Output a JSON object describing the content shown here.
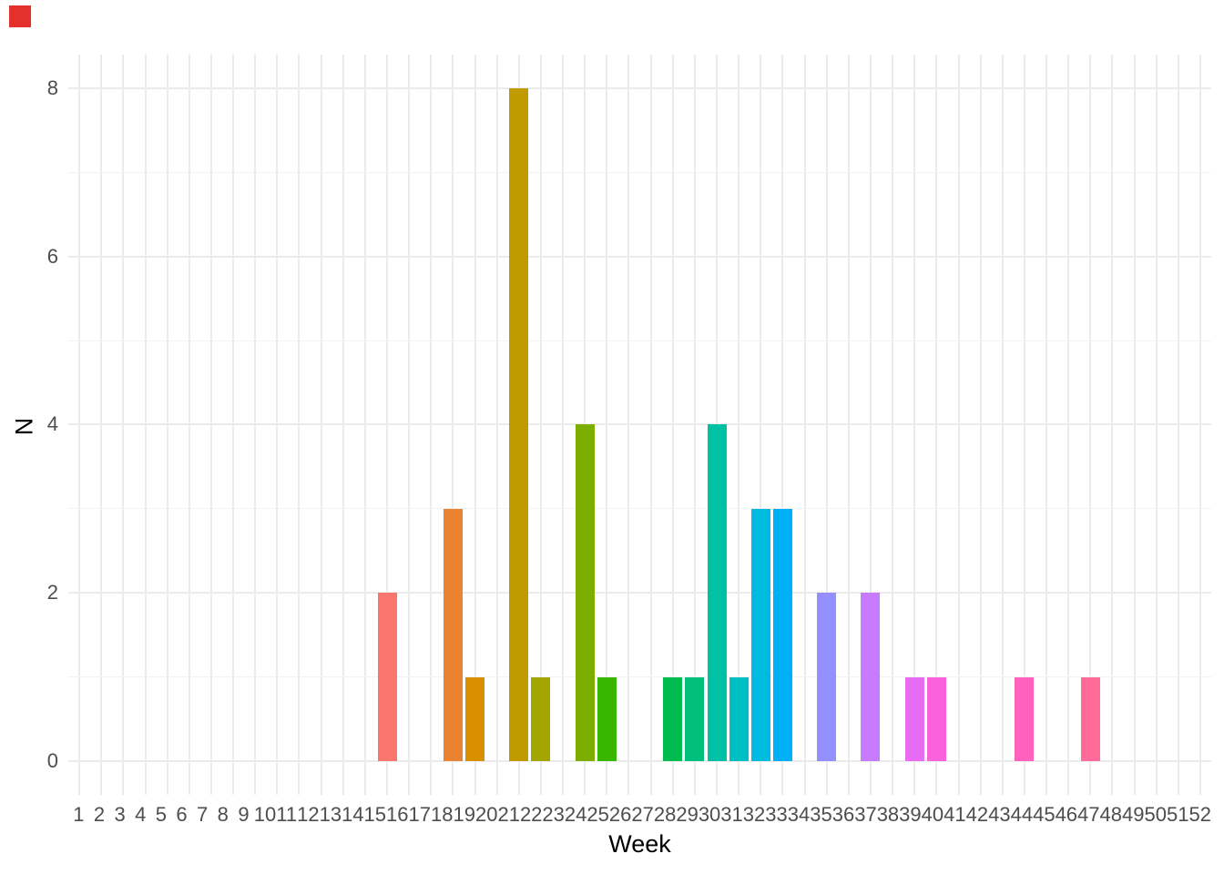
{
  "corner_marker": {
    "color": "#E4312B"
  },
  "chart_data": {
    "type": "bar",
    "title": "",
    "xlabel": "Week",
    "ylabel": "N",
    "ylim": [
      0,
      8
    ],
    "y_major_ticks": [
      0,
      2,
      4,
      6,
      8
    ],
    "y_minor_gridlines": [
      1,
      3,
      5,
      7
    ],
    "grid": "on",
    "legend_position": "none",
    "panel_background": "#FFFFFF",
    "major_grid_color": "#EBEBEB",
    "minor_grid_color": "#F2F2F2",
    "tick_label_color": "#4D4D4D",
    "axis_title_color": "#000000",
    "categories": [
      "1",
      "2",
      "3",
      "4",
      "5",
      "6",
      "7",
      "8",
      "9",
      "10",
      "11",
      "12",
      "13",
      "14",
      "15",
      "16",
      "17",
      "18",
      "19",
      "20",
      "21",
      "22",
      "23",
      "24",
      "25",
      "26",
      "27",
      "28",
      "29",
      "30",
      "31",
      "32",
      "33",
      "34",
      "35",
      "36",
      "37",
      "38",
      "39",
      "40",
      "41",
      "42",
      "43",
      "44",
      "45",
      "46",
      "47",
      "48",
      "49",
      "50",
      "51",
      "52"
    ],
    "values": [
      0,
      0,
      0,
      0,
      0,
      0,
      0,
      0,
      0,
      0,
      0,
      0,
      0,
      0,
      2,
      0,
      0,
      3,
      1,
      0,
      8,
      1,
      0,
      4,
      1,
      0,
      0,
      1,
      1,
      4,
      1,
      3,
      3,
      0,
      2,
      0,
      2,
      0,
      1,
      1,
      0,
      0,
      0,
      1,
      0,
      0,
      1,
      0,
      0,
      0,
      0,
      0
    ],
    "nonzero_bars": [
      {
        "week": 15,
        "n": 2,
        "color": "#F8766D"
      },
      {
        "week": 18,
        "n": 3,
        "color": "#EA8331"
      },
      {
        "week": 19,
        "n": 1,
        "color": "#D89000"
      },
      {
        "week": 21,
        "n": 8,
        "color": "#C09B00"
      },
      {
        "week": 22,
        "n": 1,
        "color": "#A3A500"
      },
      {
        "week": 24,
        "n": 4,
        "color": "#7CAE00"
      },
      {
        "week": 25,
        "n": 1,
        "color": "#39B600"
      },
      {
        "week": 28,
        "n": 1,
        "color": "#00BB4E"
      },
      {
        "week": 29,
        "n": 1,
        "color": "#00BF7D"
      },
      {
        "week": 30,
        "n": 4,
        "color": "#00C1A3"
      },
      {
        "week": 31,
        "n": 1,
        "color": "#00BFC4"
      },
      {
        "week": 32,
        "n": 3,
        "color": "#00BAE0"
      },
      {
        "week": 33,
        "n": 3,
        "color": "#00B0F6"
      },
      {
        "week": 35,
        "n": 2,
        "color": "#9590FF"
      },
      {
        "week": 37,
        "n": 2,
        "color": "#C77CFF"
      },
      {
        "week": 39,
        "n": 1,
        "color": "#E76BF3"
      },
      {
        "week": 40,
        "n": 1,
        "color": "#FA62DB"
      },
      {
        "week": 44,
        "n": 1,
        "color": "#FF62BC"
      },
      {
        "week": 47,
        "n": 1,
        "color": "#FF6A98"
      }
    ]
  }
}
